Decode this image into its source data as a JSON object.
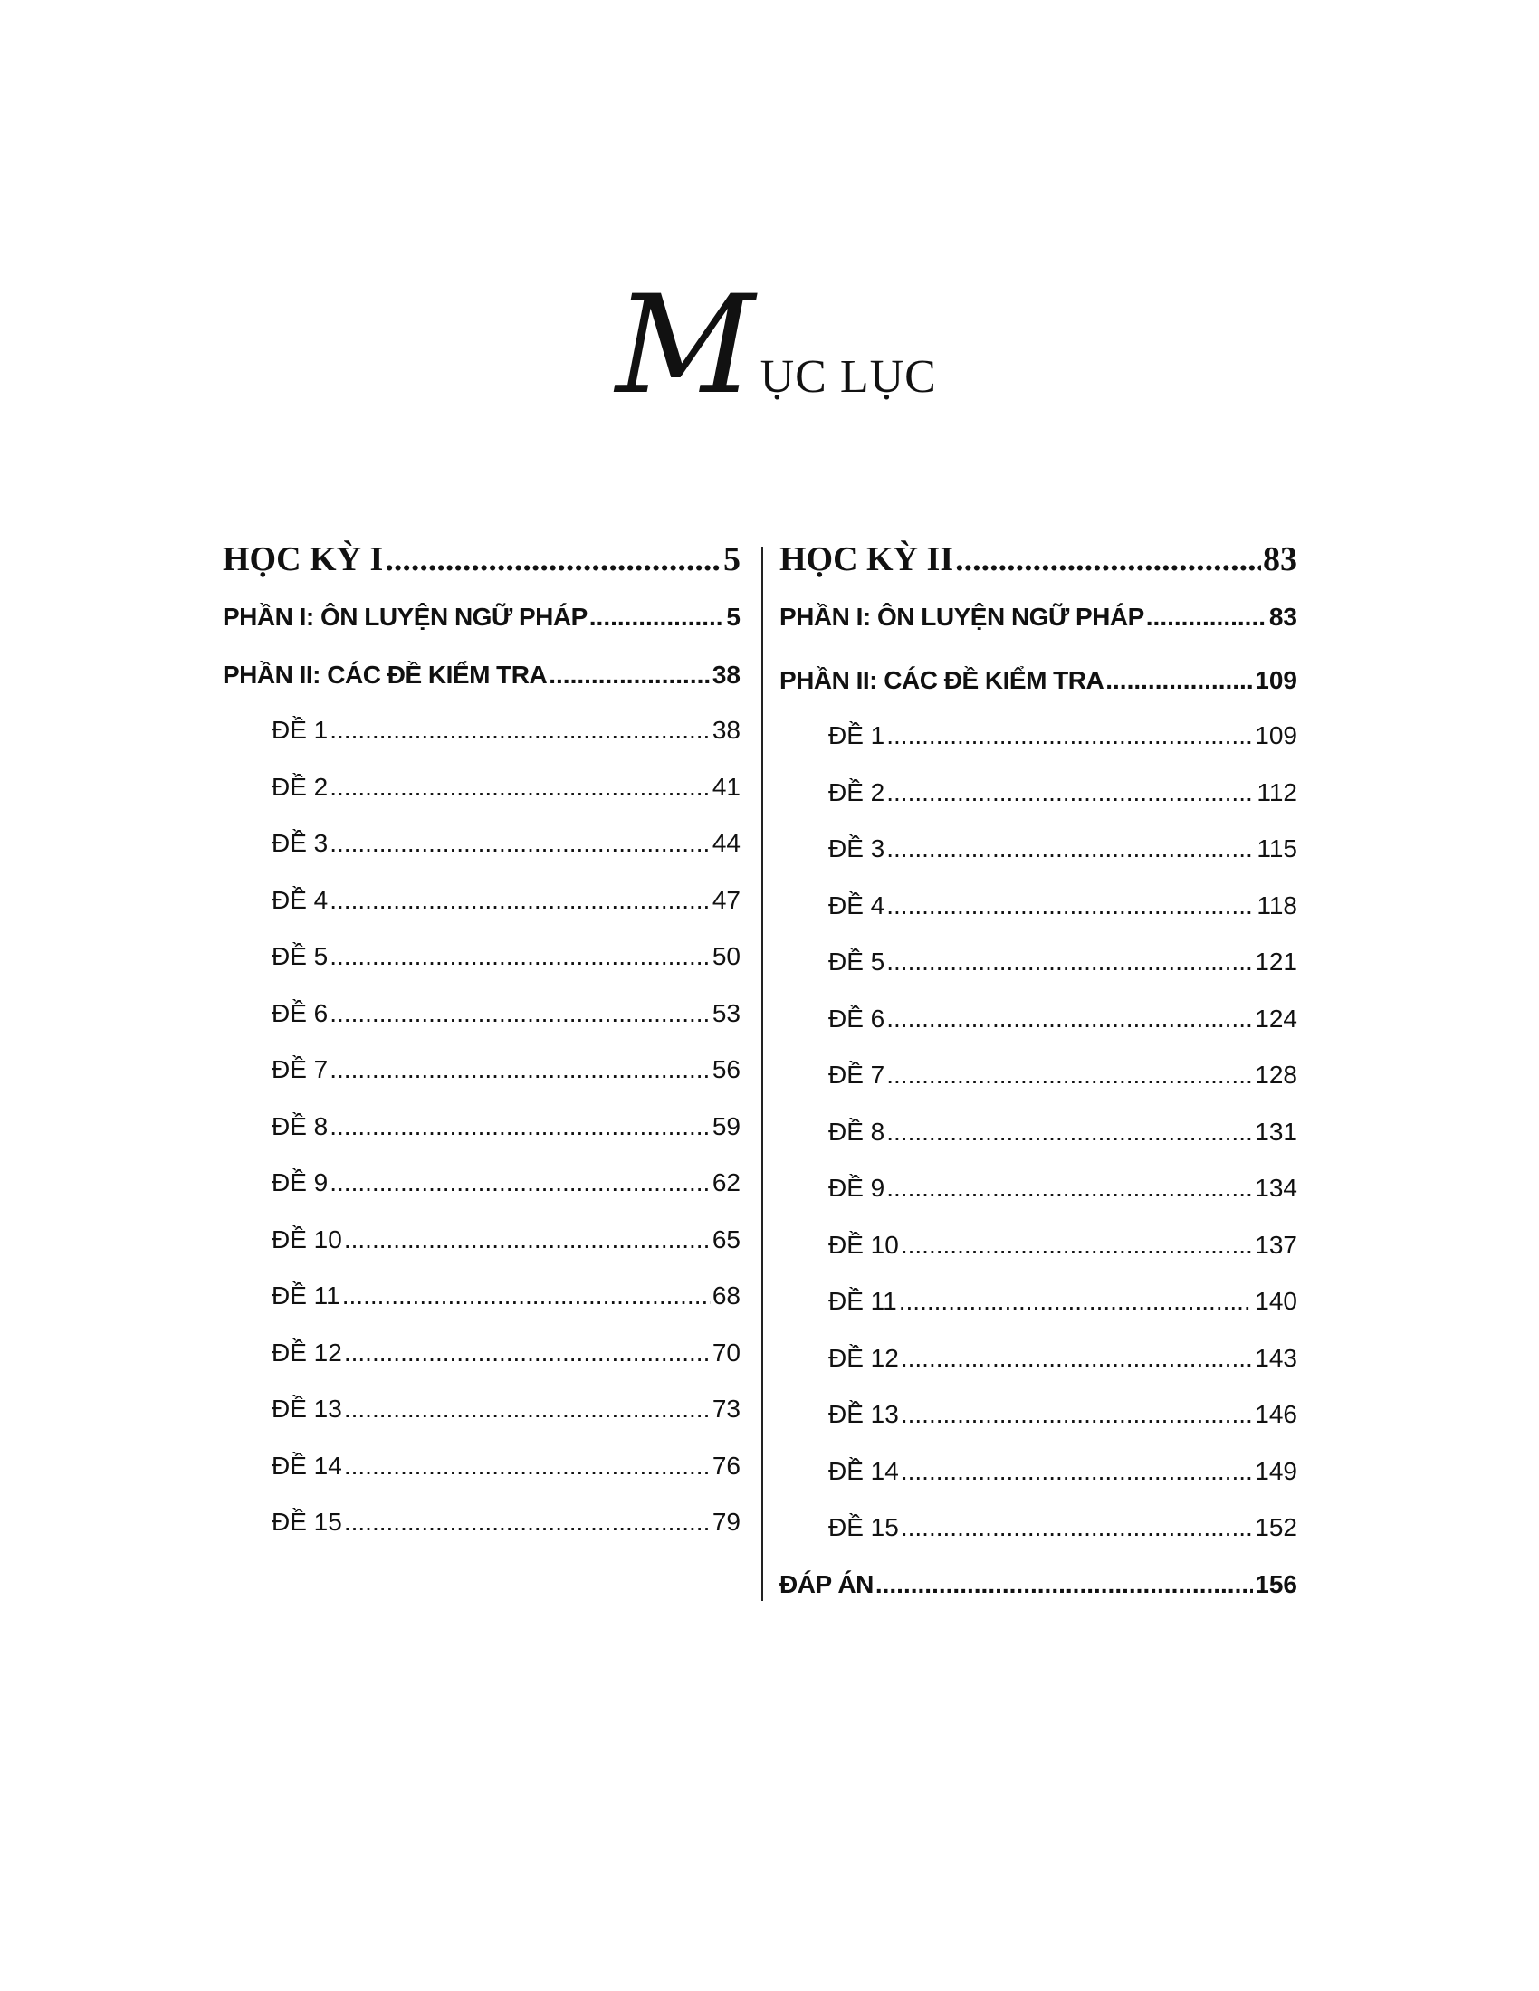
{
  "title": {
    "initial": "M",
    "rest": "ỤC LỤC",
    "full": "MỤC LỤC"
  },
  "columns": [
    {
      "heading": {
        "label": "HỌC KỲ I",
        "page": "5"
      },
      "entries": [
        {
          "label": "PHẦN I: ÔN LUYỆN NGỮ PHÁP",
          "page": "5",
          "level": "h2"
        },
        {
          "label": "PHẦN II: CÁC ĐỀ KIỂM TRA",
          "page": "38",
          "level": "h2"
        },
        {
          "label": "ĐỀ 1",
          "page": "38",
          "level": "item"
        },
        {
          "label": "ĐỀ 2",
          "page": "41",
          "level": "item"
        },
        {
          "label": "ĐỀ 3",
          "page": "44",
          "level": "item"
        },
        {
          "label": "ĐỀ 4",
          "page": "47",
          "level": "item"
        },
        {
          "label": "ĐỀ 5",
          "page": "50",
          "level": "item"
        },
        {
          "label": "ĐỀ 6",
          "page": "53",
          "level": "item"
        },
        {
          "label": "ĐỀ 7",
          "page": "56",
          "level": "item"
        },
        {
          "label": "ĐỀ 8",
          "page": "59",
          "level": "item"
        },
        {
          "label": "ĐỀ 9",
          "page": "62",
          "level": "item"
        },
        {
          "label": "ĐỀ 10",
          "page": "65",
          "level": "item"
        },
        {
          "label": "ĐỀ 11",
          "page": "68",
          "level": "item"
        },
        {
          "label": "ĐỀ 12",
          "page": "70",
          "level": "item"
        },
        {
          "label": "ĐỀ 13",
          "page": "73",
          "level": "item"
        },
        {
          "label": "ĐỀ 14",
          "page": "76",
          "level": "item"
        },
        {
          "label": "ĐỀ 15",
          "page": "79",
          "level": "item"
        }
      ]
    },
    {
      "heading": {
        "label": "HỌC KỲ II",
        "page": "83"
      },
      "entries": [
        {
          "label": "PHẦN I: ÔN LUYỆN NGỮ PHÁP",
          "page": "83",
          "level": "h2"
        },
        {
          "label": "PHẦN II: CÁC ĐỀ KIỂM TRA",
          "page": "109",
          "level": "h2"
        },
        {
          "label": "ĐỀ 1",
          "page": "109",
          "level": "item"
        },
        {
          "label": "ĐỀ 2",
          "page": "112",
          "level": "item"
        },
        {
          "label": "ĐỀ 3",
          "page": "115",
          "level": "item"
        },
        {
          "label": "ĐỀ 4",
          "page": "118",
          "level": "item"
        },
        {
          "label": "ĐỀ 5",
          "page": "121",
          "level": "item"
        },
        {
          "label": "ĐỀ 6",
          "page": "124",
          "level": "item"
        },
        {
          "label": "ĐỀ 7",
          "page": "128",
          "level": "item"
        },
        {
          "label": "ĐỀ 8",
          "page": "131",
          "level": "item"
        },
        {
          "label": "ĐỀ 9",
          "page": "134",
          "level": "item"
        },
        {
          "label": "ĐỀ 10",
          "page": "137",
          "level": "item"
        },
        {
          "label": "ĐỀ 11",
          "page": "140",
          "level": "item"
        },
        {
          "label": "ĐỀ 12",
          "page": "143",
          "level": "item"
        },
        {
          "label": "ĐỀ 13",
          "page": "146",
          "level": "item"
        },
        {
          "label": "ĐỀ 14",
          "page": "149",
          "level": "item"
        },
        {
          "label": "ĐỀ 15",
          "page": "152",
          "level": "item"
        },
        {
          "label": "ĐÁP ÁN",
          "page": "156",
          "level": "h2"
        }
      ]
    }
  ]
}
